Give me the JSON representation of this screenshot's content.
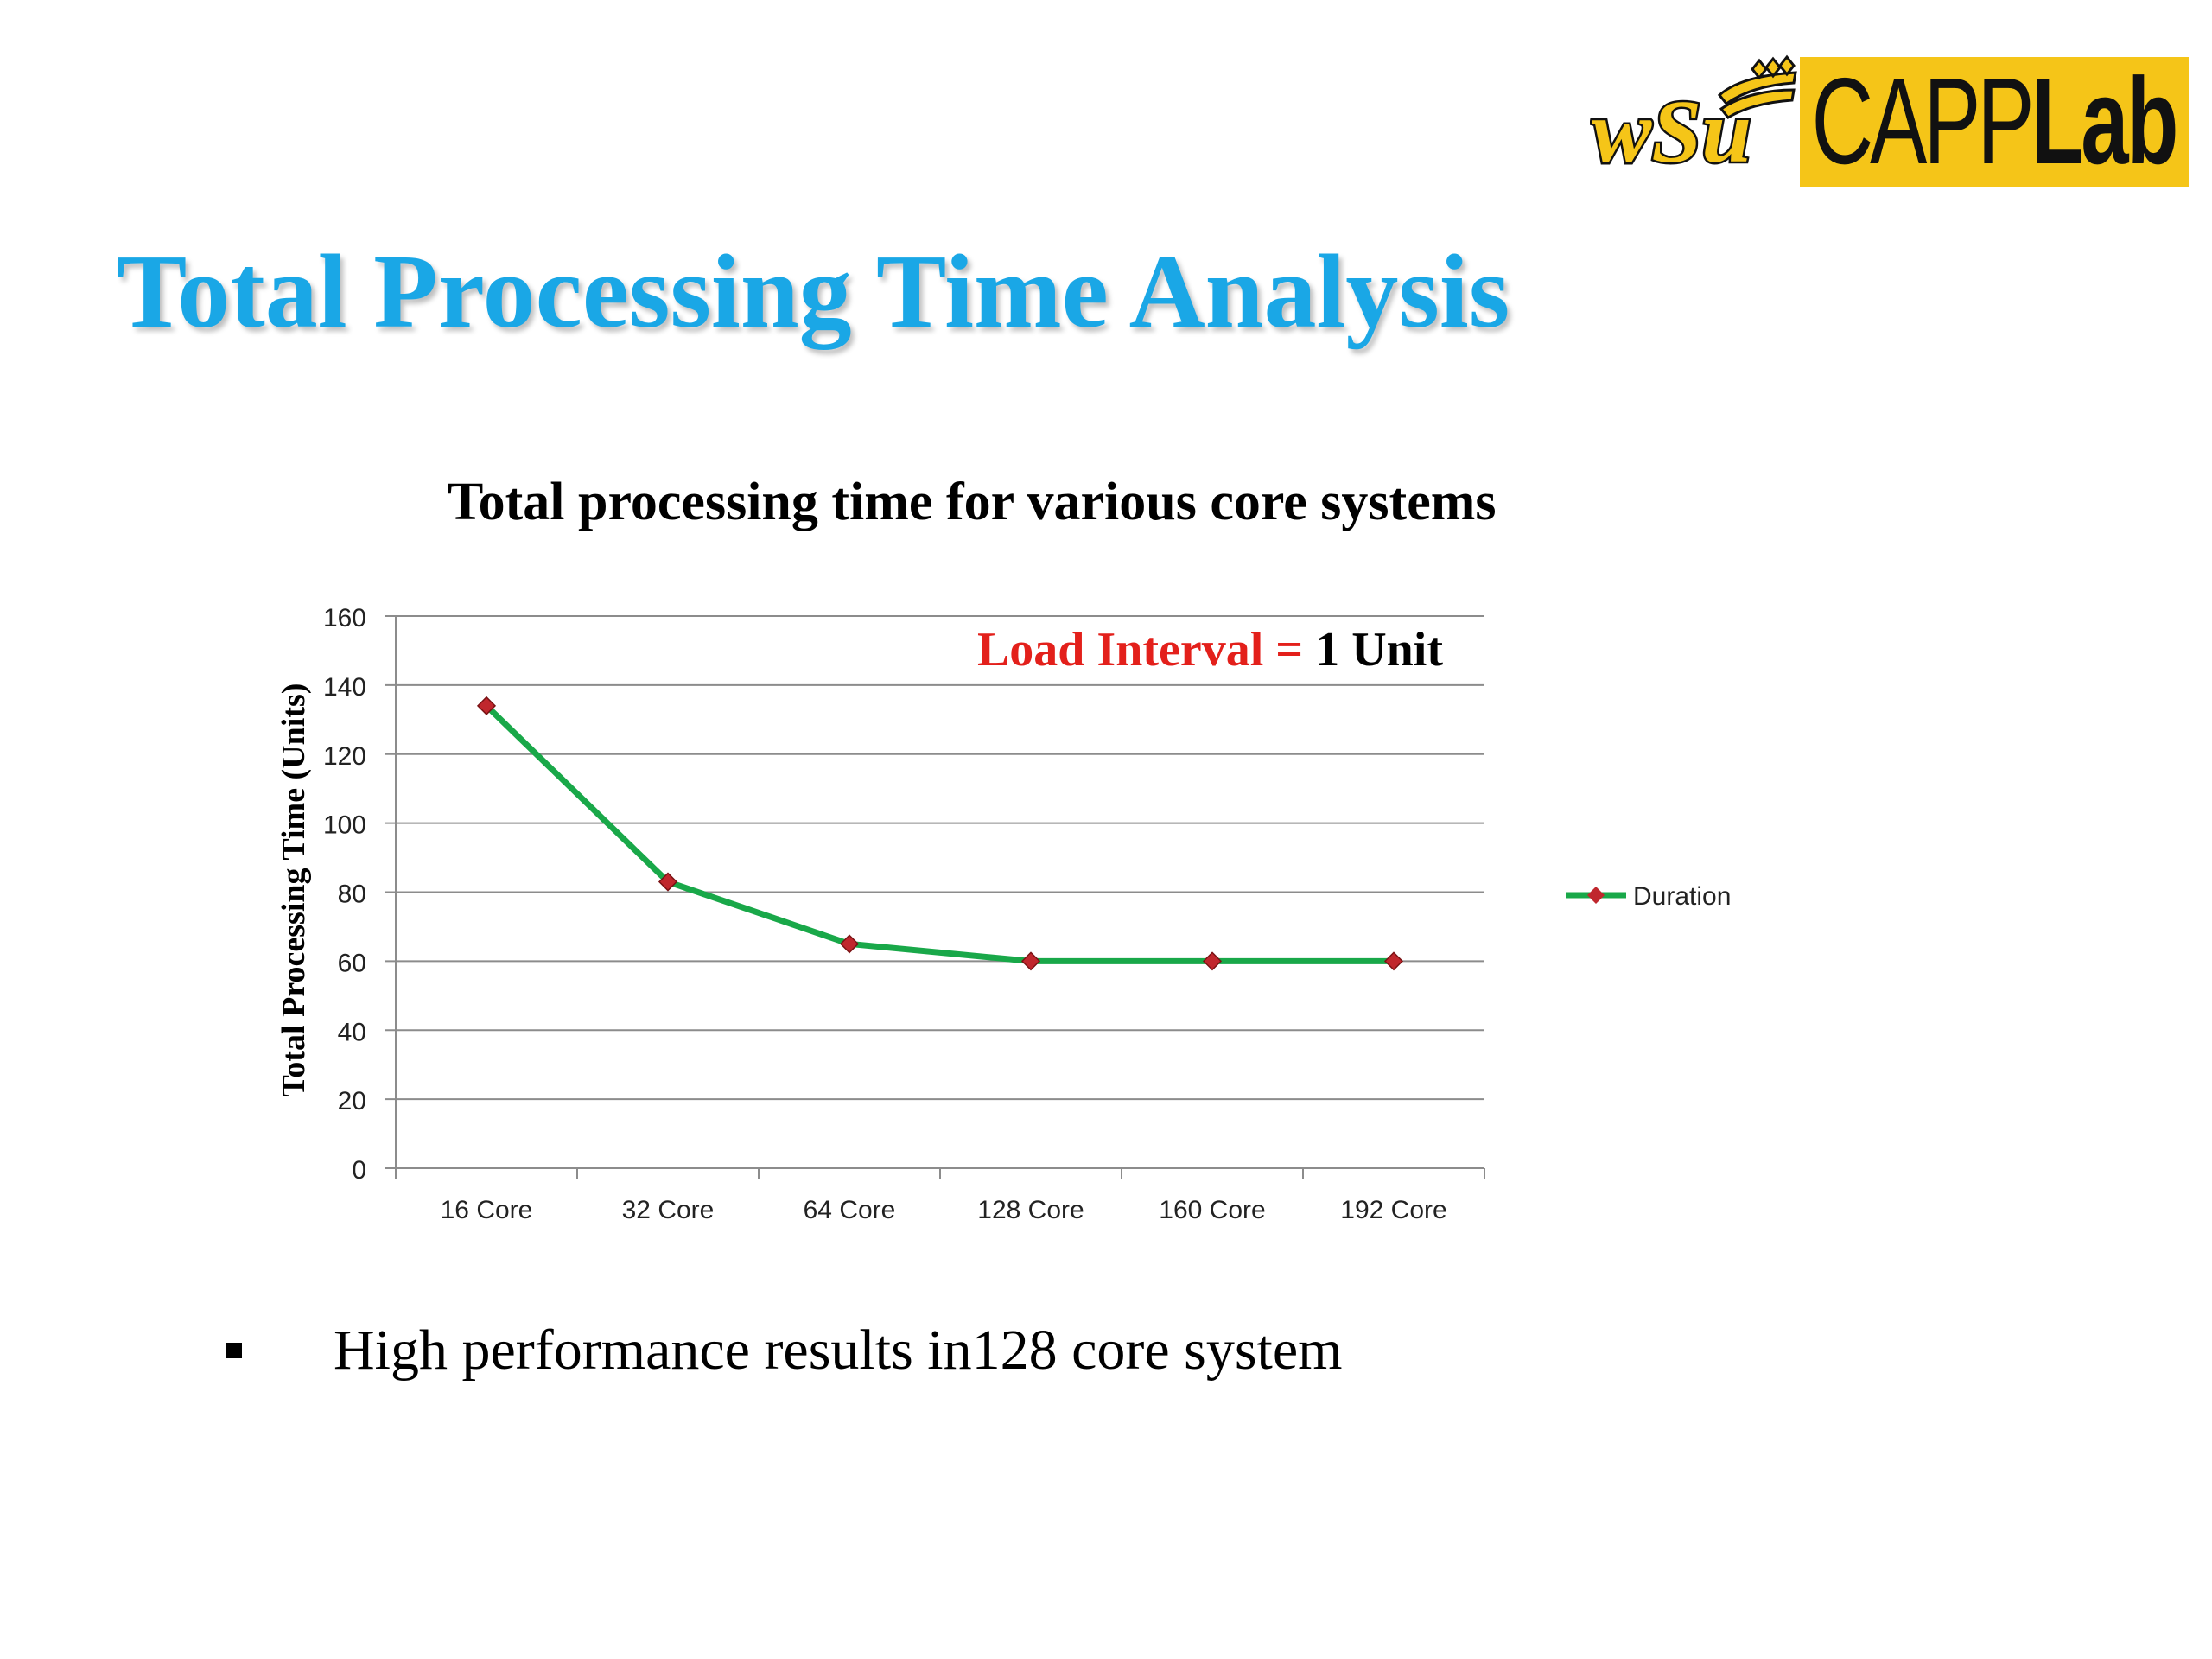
{
  "logo": {
    "mark_text": "wSu",
    "capp_text": "CAPP",
    "lab_text": "Lab",
    "box_color": "#F5C518"
  },
  "slide": {
    "title": "Total Processing Time Analysis",
    "bullet": "High performance results in128 core system",
    "title_color": "#1AA7E6"
  },
  "chart_data": {
    "type": "line",
    "title": "Total processing time for various core systems",
    "categories": [
      "16 Core",
      "32 Core",
      "64 Core",
      "128 Core",
      "160 Core",
      "192 Core"
    ],
    "series": [
      {
        "name": "Duration",
        "values": [
          134,
          83,
          65,
          60,
          60,
          60
        ],
        "color": "#19A849",
        "marker_color": "#C0272D"
      }
    ],
    "ylabel": "Total Processing Time (Units)",
    "xlabel": "",
    "ylim": [
      0,
      160
    ],
    "yticks": [
      0,
      20,
      40,
      60,
      80,
      100,
      120,
      140,
      160
    ],
    "grid": true,
    "legend": "right",
    "annotation": {
      "part1": "Load Interval = ",
      "part2": "1 Unit",
      "color1": "#E3201B",
      "color2": "#000000"
    }
  }
}
